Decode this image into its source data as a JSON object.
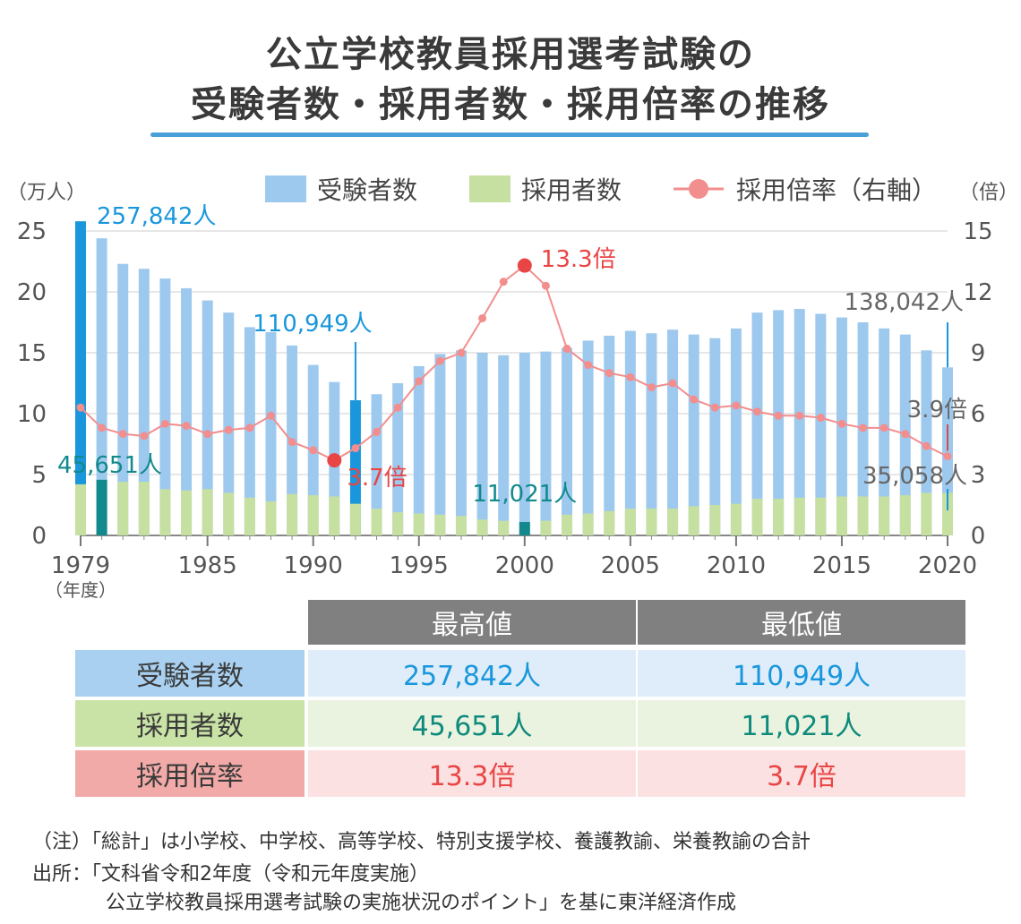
{
  "title": {
    "line1": "公立学校教員採用選考試験の",
    "line2": "受験者数・採用者数・採用倍率の推移"
  },
  "chart_data": {
    "type": "bar",
    "x": [
      1979,
      1980,
      1981,
      1982,
      1983,
      1984,
      1985,
      1986,
      1987,
      1988,
      1989,
      1990,
      1991,
      1992,
      1993,
      1994,
      1995,
      1996,
      1997,
      1998,
      1999,
      2000,
      2001,
      2002,
      2003,
      2004,
      2005,
      2006,
      2007,
      2008,
      2009,
      2010,
      2011,
      2012,
      2013,
      2014,
      2015,
      2016,
      2017,
      2018,
      2019,
      2020
    ],
    "xticks": [
      "1979",
      "1985",
      "1990",
      "1995",
      "2000",
      "2005",
      "2010",
      "2015",
      "2020"
    ],
    "xlabel": "（年度）",
    "ylabel_left": "（万人）",
    "ylabel_right": "（倍）",
    "ylim_left": [
      0,
      25
    ],
    "ylim_right": [
      0,
      15
    ],
    "yticks_left": [
      "0",
      "5",
      "10",
      "15",
      "20",
      "25"
    ],
    "yticks_right": [
      "0",
      "3",
      "6",
      "9",
      "12",
      "15"
    ],
    "grid": true,
    "legend_position": "top",
    "series": [
      {
        "name": "受験者数",
        "kind": "bar",
        "axis": "left",
        "color": "#9ec9ee",
        "highlight_color": "#1a97dc",
        "values": [
          25.8,
          24.4,
          22.3,
          21.9,
          21.1,
          20.3,
          19.3,
          18.3,
          17.1,
          16.7,
          15.6,
          14.0,
          12.6,
          11.1,
          11.6,
          12.5,
          13.9,
          14.9,
          15.2,
          15.0,
          14.8,
          15.0,
          15.1,
          15.4,
          16.0,
          16.4,
          16.8,
          16.6,
          16.9,
          16.5,
          16.2,
          17.0,
          18.3,
          18.5,
          18.6,
          18.2,
          17.9,
          17.5,
          17.0,
          16.5,
          15.2,
          13.8
        ]
      },
      {
        "name": "採用者数",
        "kind": "bar",
        "axis": "left",
        "color": "#c6e0a2",
        "highlight_color": "#12898c",
        "values": [
          4.2,
          4.57,
          4.4,
          4.4,
          3.8,
          3.7,
          3.8,
          3.5,
          3.1,
          2.8,
          3.4,
          3.3,
          3.2,
          2.6,
          2.2,
          1.9,
          1.8,
          1.7,
          1.6,
          1.3,
          1.2,
          1.1,
          1.2,
          1.7,
          1.8,
          2.0,
          2.2,
          2.2,
          2.2,
          2.4,
          2.5,
          2.6,
          3.0,
          3.0,
          3.1,
          3.1,
          3.2,
          3.2,
          3.2,
          3.3,
          3.5,
          3.5
        ]
      },
      {
        "name": "採用倍率（右軸）",
        "kind": "line",
        "axis": "right",
        "color": "#f28e8e",
        "highlight_color": "#e94545",
        "values": [
          6.3,
          5.3,
          5.0,
          4.9,
          5.5,
          5.4,
          5.0,
          5.2,
          5.3,
          5.9,
          4.6,
          4.2,
          3.7,
          4.3,
          5.1,
          6.3,
          7.6,
          8.6,
          9.0,
          10.7,
          12.5,
          13.3,
          12.3,
          9.2,
          8.4,
          8.0,
          7.8,
          7.3,
          7.5,
          6.7,
          6.3,
          6.4,
          6.1,
          5.9,
          5.9,
          5.8,
          5.5,
          5.3,
          5.3,
          5.0,
          4.4,
          3.9
        ]
      }
    ],
    "annotations": [
      {
        "text": "257,842人",
        "color": "#1a97dc"
      },
      {
        "text": "110,949人",
        "color": "#1a97dc"
      },
      {
        "text": "138,042人",
        "color": "#666666"
      },
      {
        "text": "45,651人",
        "color": "#12898c"
      },
      {
        "text": "11,021人",
        "color": "#12898c"
      },
      {
        "text": "35,058人",
        "color": "#666666"
      },
      {
        "text": "13.3倍",
        "color": "#e94545"
      },
      {
        "text": "3.7倍",
        "color": "#e94545"
      },
      {
        "text": "3.9倍",
        "color": "#666666"
      }
    ]
  },
  "table": {
    "headers": [
      "最高値",
      "最低値"
    ],
    "rows": [
      {
        "label": "受験者数",
        "max": "257,842人",
        "min": "110,949人",
        "label_bg": "#a9d0f0",
        "cell_bg": "#deedf9",
        "text_color": "#1a97dc"
      },
      {
        "label": "採用者数",
        "max": "45,651人",
        "min": "11,021人",
        "label_bg": "#c9e3a6",
        "cell_bg": "#eaf3df",
        "text_color": "#0e8a7c"
      },
      {
        "label": "採用倍率",
        "max": "13.3倍",
        "min": "3.7倍",
        "label_bg": "#f2aaa8",
        "cell_bg": "#fbe1e1",
        "text_color": "#e94545"
      }
    ]
  },
  "notes": {
    "line1": "（注）「総計」は小学校、中学校、高等学校、特別支援学校、養護教諭、栄養教諭の合計",
    "line2": "出所：「文科省令和2年度（令和元年度実施）",
    "line3": "公立学校教員採用選考試験の実施状況のポイント」を基に東洋経済作成"
  }
}
